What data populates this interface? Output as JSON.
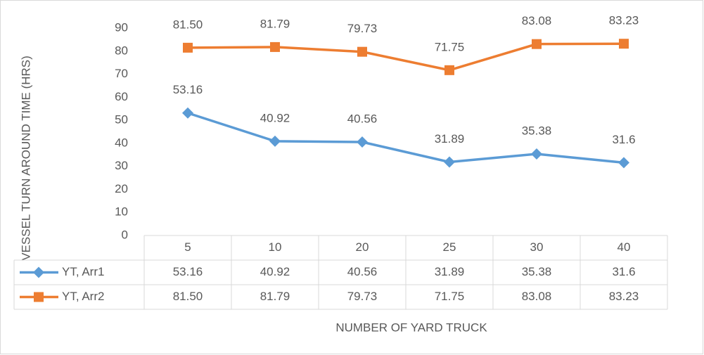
{
  "chart_data": {
    "type": "line",
    "y_axis_label": "VESSEL TURN AROUND TIME (HRS)",
    "x_axis_label": "NUMBER OF YARD TRUCK",
    "categories": [
      "5",
      "10",
      "20",
      "25",
      "30",
      "40"
    ],
    "series": [
      {
        "name": "YT, Arr1",
        "color": "#5b9bd5",
        "marker": "diamond",
        "values": [
          53.16,
          40.92,
          40.56,
          31.89,
          35.38,
          31.6
        ]
      },
      {
        "name": "YT, Arr2",
        "color": "#ed7d31",
        "marker": "square",
        "values": [
          81.5,
          81.79,
          79.73,
          71.75,
          83.08,
          83.23
        ],
        "value_labels": [
          "81.50",
          "81.79",
          "79.73",
          "71.75",
          "83.08",
          "83.23"
        ]
      }
    ],
    "ylim": [
      0,
      90
    ],
    "yticks": [
      0,
      10,
      20,
      30,
      40,
      50,
      60,
      70,
      80,
      90
    ],
    "grid": false
  }
}
